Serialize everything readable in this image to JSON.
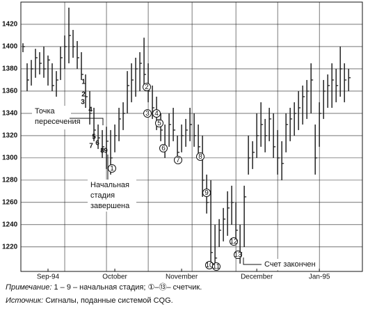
{
  "chart_data": {
    "type": "ohlc",
    "ylim": [
      1198,
      1440
    ],
    "yticks": [
      1220,
      1240,
      1260,
      1280,
      1300,
      1320,
      1340,
      1360,
      1380,
      1400,
      1420
    ],
    "xlim": [
      -0.5,
      81.3
    ],
    "xticks": [
      {
        "value": 6,
        "label": "Sep-94"
      },
      {
        "value": 22,
        "label": "October"
      },
      {
        "value": 38,
        "label": "November"
      },
      {
        "value": 56,
        "label": "December"
      },
      {
        "value": 71,
        "label": "Jan-95"
      }
    ],
    "xgrid": [
      10,
      20,
      30,
      40.5,
      51,
      61,
      71
    ],
    "grid": true,
    "color": "#111111",
    "high": [
      1403,
      1385,
      1388,
      1398,
      1395,
      1400,
      1392,
      1385,
      1378,
      1400,
      1410,
      1435,
      1415,
      1405,
      1395,
      1375,
      1360,
      1345,
      1330,
      1325,
      1328,
      1325,
      1330,
      1345,
      1350,
      1378,
      1385,
      1390,
      1395,
      1408,
      1385,
      1365,
      1355,
      1340,
      1330,
      1340,
      1345,
      1320,
      1330,
      1335,
      1345,
      1340,
      1330,
      1320,
      1285,
      1280,
      1240,
      1245,
      1255,
      1270,
      1275,
      1260,
      1240,
      1275,
      1320,
      1315,
      1340,
      1350,
      1335,
      1345,
      1340,
      1325,
      1315,
      1340,
      1345,
      1350,
      1360,
      1365,
      1370,
      1385,
      1330,
      1350,
      1370,
      1375,
      1385,
      1380,
      1400,
      1385,
      1380
    ],
    "low": [
      1395,
      1360,
      1365,
      1372,
      1375,
      1372,
      1365,
      1360,
      1355,
      1370,
      1380,
      1385,
      1390,
      1380,
      1370,
      1345,
      1330,
      1315,
      1308,
      1300,
      1290,
      1285,
      1305,
      1315,
      1325,
      1340,
      1350,
      1355,
      1360,
      1365,
      1350,
      1335,
      1325,
      1315,
      1300,
      1310,
      1315,
      1295,
      1305,
      1310,
      1315,
      1310,
      1300,
      1265,
      1250,
      1205,
      1200,
      1220,
      1225,
      1230,
      1240,
      1225,
      1205,
      1220,
      1285,
      1290,
      1300,
      1310,
      1305,
      1315,
      1300,
      1285,
      1280,
      1305,
      1315,
      1320,
      1325,
      1330,
      1335,
      1340,
      1285,
      1310,
      1335,
      1345,
      1345,
      1350,
      1355,
      1350,
      1360
    ],
    "close": [
      1400,
      1370,
      1380,
      1390,
      1385,
      1380,
      1388,
      1365,
      1370,
      1390,
      1400,
      1410,
      1400,
      1390,
      1375,
      1355,
      1340,
      1325,
      1318,
      1310,
      1315,
      1300,
      1320,
      1335,
      1340,
      1365,
      1370,
      1380,
      1385,
      1375,
      1360,
      1345,
      1340,
      1325,
      1310,
      1330,
      1325,
      1305,
      1320,
      1325,
      1330,
      1320,
      1310,
      1280,
      1260,
      1215,
      1210,
      1235,
      1245,
      1255,
      1260,
      1235,
      1215,
      1265,
      1300,
      1305,
      1320,
      1330,
      1320,
      1335,
      1310,
      1300,
      1295,
      1330,
      1335,
      1340,
      1345,
      1355,
      1360,
      1370,
      1300,
      1340,
      1360,
      1365,
      1370,
      1365,
      1380,
      1370,
      1372
    ],
    "stage_labels": [
      "1",
      "2",
      "3",
      "4",
      "5",
      "6",
      "7",
      "8",
      "9"
    ],
    "count_labels": [
      "1",
      "2",
      "3",
      "4",
      "5",
      "6",
      "7",
      "8",
      "9",
      "10",
      "11",
      "12",
      "13"
    ],
    "annotations": [
      "Точка",
      "пересечения",
      "Начальная",
      "стадия",
      "завершена",
      "Счет закончен"
    ]
  },
  "caption": {
    "note_label": "Примечание:",
    "note_text": "1 – 9 – начальная стадия; ①–⑬– счетчик.",
    "source_label": "Источник:",
    "source_text": "Сигналы, поданные системой CQG."
  }
}
